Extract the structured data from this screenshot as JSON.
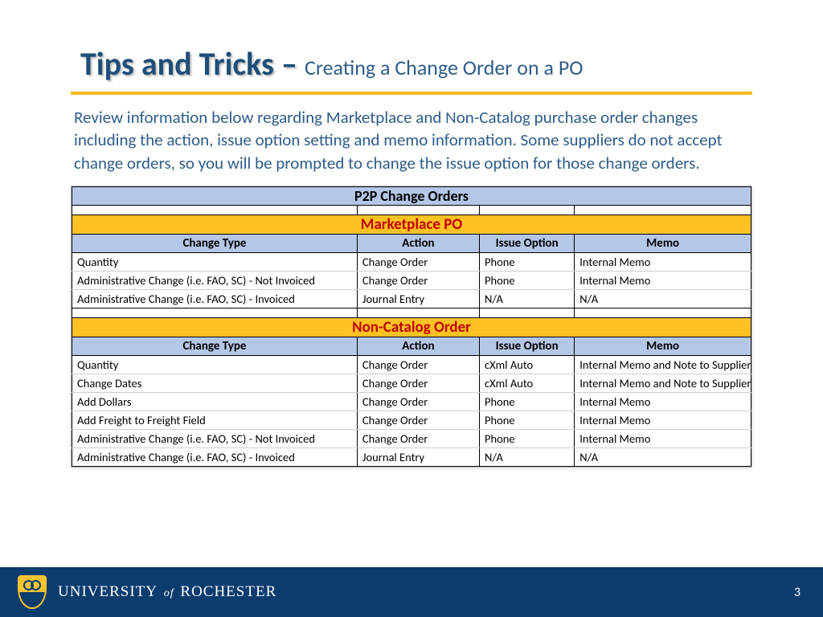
{
  "title": {
    "main": "Tips and Tricks – ",
    "sub": "Creating a Change Order on a PO"
  },
  "colors": {
    "title_text": "#1f4e79",
    "subtitle_text": "#2e5c8a",
    "rule": "#f4b91f",
    "header_blue": "#b4c7e7",
    "section_orange": "#ffc222",
    "section_text": "#c00000",
    "footer_bg": "#0b3c6e"
  },
  "body": "Review information below regarding Marketplace and Non-Catalog purchase order changes including the action, issue option setting and memo information. Some suppliers do not accept change orders, so you will be prompted to change the issue option for those change orders.",
  "table": {
    "main_header": "P2P Change Orders",
    "columns": [
      "Change Type",
      "Action",
      "Issue Option",
      "Memo"
    ],
    "sections": [
      {
        "title": "Marketplace PO",
        "rows": [
          [
            "Quantity",
            "Change Order",
            "Phone",
            "Internal Memo"
          ],
          [
            "Administrative Change (i.e. FAO, SC) - Not Invoiced",
            "Change Order",
            "Phone",
            "Internal Memo"
          ],
          [
            "Administrative Change (i.e. FAO, SC) - Invoiced",
            "Journal Entry",
            "N/A",
            "N/A"
          ]
        ]
      },
      {
        "title": "Non-Catalog Order",
        "rows": [
          [
            "Quantity",
            "Change Order",
            "cXml Auto",
            "Internal Memo and Note to Supplier"
          ],
          [
            "Change Dates",
            "Change Order",
            "cXml Auto",
            "Internal Memo and Note to Supplier"
          ],
          [
            "Add Dollars",
            "Change Order",
            "Phone",
            "Internal Memo"
          ],
          [
            "Add Freight to Freight Field",
            "Change Order",
            "Phone",
            "Internal Memo"
          ],
          [
            "Administrative Change (i.e. FAO, SC) - Not Invoiced",
            "Change Order",
            "Phone",
            "Internal Memo"
          ],
          [
            "Administrative Change (i.e. FAO, SC) - Invoiced",
            "Journal Entry",
            "N/A",
            "N/A"
          ]
        ]
      }
    ]
  },
  "footer": {
    "university_pre": "UNIVERSITY",
    "university_of": "of",
    "university_post": "ROCHESTER",
    "page": "3"
  }
}
